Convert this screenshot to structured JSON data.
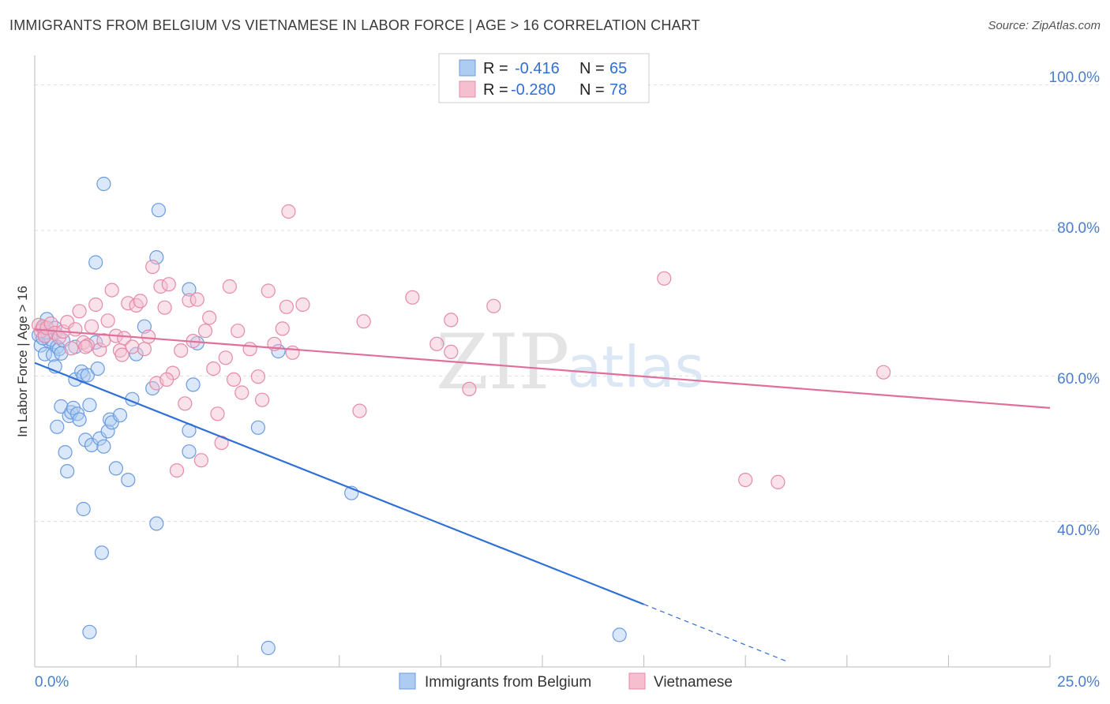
{
  "title": "IMMIGRANTS FROM BELGIUM VS VIETNAMESE IN LABOR FORCE | AGE > 16 CORRELATION CHART",
  "source": "Source: ZipAtlas.com",
  "watermark": {
    "zip": "ZIP",
    "atlas": "atlas"
  },
  "chart_data": {
    "type": "scatter",
    "title": "IMMIGRANTS FROM BELGIUM VS VIETNAMESE IN LABOR FORCE | AGE > 16 CORRELATION CHART",
    "xlabel": "",
    "ylabel": "In Labor Force | Age > 16",
    "xlim": [
      0,
      25
    ],
    "ylim": [
      20,
      103
    ],
    "x_tick_labels": [
      "0.0%",
      "25.0%"
    ],
    "y_ticks": [
      40,
      60,
      80,
      100
    ],
    "y_tick_labels": [
      "40.0%",
      "60.0%",
      "80.0%",
      "100.0%"
    ],
    "legend": {
      "entries": [
        {
          "r_label": "R =",
          "r_value": "-0.416",
          "n_label": "N =",
          "n_value": "65"
        },
        {
          "r_label": "R =",
          "r_value": "-0.280",
          "n_label": "N =",
          "n_value": "78"
        }
      ]
    },
    "series": [
      {
        "name": "Immigrants from Belgium",
        "color": "#6c9be0",
        "fill": "#aecbf2",
        "line_color": "#2f6fd6",
        "trend": {
          "x0": 0,
          "y0": 61.8,
          "x1": 15.0,
          "y1": 28.6,
          "dash_to_x": 18.5,
          "dash_to_y": 20.8
        },
        "points": [
          [
            0.1,
            65.6
          ],
          [
            0.15,
            64.2
          ],
          [
            0.2,
            66.6
          ],
          [
            0.25,
            63.0
          ],
          [
            0.3,
            67.8
          ],
          [
            0.35,
            64.8
          ],
          [
            0.4,
            65.0
          ],
          [
            0.45,
            62.9
          ],
          [
            0.5,
            61.3
          ],
          [
            0.55,
            64.0
          ],
          [
            0.6,
            63.7
          ],
          [
            0.65,
            63.1
          ],
          [
            0.7,
            64.9
          ],
          [
            0.3,
            66.0
          ],
          [
            0.2,
            65.2
          ],
          [
            0.5,
            66.6
          ],
          [
            0.55,
            53.0
          ],
          [
            0.65,
            55.8
          ],
          [
            0.75,
            49.5
          ],
          [
            0.8,
            46.9
          ],
          [
            0.85,
            54.5
          ],
          [
            0.9,
            55.0
          ],
          [
            0.95,
            55.6
          ],
          [
            1.0,
            59.5
          ],
          [
            1.05,
            54.8
          ],
          [
            1.1,
            54.0
          ],
          [
            1.15,
            60.6
          ],
          [
            1.2,
            60.0
          ],
          [
            1.25,
            51.2
          ],
          [
            1.3,
            60.1
          ],
          [
            1.35,
            56.0
          ],
          [
            1.4,
            50.5
          ],
          [
            1.55,
            61.0
          ],
          [
            1.6,
            51.4
          ],
          [
            1.7,
            50.3
          ],
          [
            1.8,
            52.4
          ],
          [
            1.85,
            54.0
          ],
          [
            1.9,
            53.6
          ],
          [
            2.0,
            47.3
          ],
          [
            2.1,
            54.6
          ],
          [
            1.5,
            64.6
          ],
          [
            1.0,
            64.0
          ],
          [
            2.5,
            63.0
          ],
          [
            2.3,
            45.7
          ],
          [
            3.0,
            39.7
          ],
          [
            2.9,
            58.3
          ],
          [
            3.8,
            49.6
          ],
          [
            3.8,
            52.5
          ],
          [
            3.9,
            58.8
          ],
          [
            4.0,
            64.5
          ],
          [
            5.5,
            52.9
          ],
          [
            6.0,
            63.4
          ],
          [
            7.8,
            43.9
          ],
          [
            3.05,
            82.8
          ],
          [
            1.7,
            86.4
          ],
          [
            1.5,
            75.6
          ],
          [
            3.0,
            76.3
          ],
          [
            3.8,
            71.9
          ],
          [
            2.7,
            66.8
          ],
          [
            1.2,
            41.7
          ],
          [
            1.65,
            35.7
          ],
          [
            1.35,
            24.8
          ],
          [
            5.75,
            22.6
          ],
          [
            14.4,
            24.4
          ],
          [
            2.4,
            56.8
          ]
        ]
      },
      {
        "name": "Vietnamese",
        "color": "#e58aa8",
        "fill": "#f5bfd0",
        "line_color": "#e0709a",
        "trend": {
          "x0": 0,
          "y0": 66.4,
          "x1": 25.0,
          "y1": 55.6
        },
        "points": [
          [
            0.1,
            67.0
          ],
          [
            0.15,
            66.2
          ],
          [
            0.2,
            66.8
          ],
          [
            0.25,
            65.5
          ],
          [
            0.3,
            66.6
          ],
          [
            0.4,
            67.2
          ],
          [
            0.5,
            65.9
          ],
          [
            0.6,
            65.3
          ],
          [
            0.7,
            66.1
          ],
          [
            0.8,
            67.4
          ],
          [
            0.9,
            63.8
          ],
          [
            1.0,
            66.4
          ],
          [
            1.1,
            68.9
          ],
          [
            1.2,
            64.6
          ],
          [
            1.3,
            64.2
          ],
          [
            1.4,
            66.8
          ],
          [
            1.5,
            69.8
          ],
          [
            1.6,
            63.6
          ],
          [
            1.7,
            64.9
          ],
          [
            1.8,
            67.6
          ],
          [
            1.9,
            71.8
          ],
          [
            2.0,
            65.5
          ],
          [
            2.1,
            63.5
          ],
          [
            2.2,
            65.2
          ],
          [
            2.3,
            70.0
          ],
          [
            2.4,
            64.0
          ],
          [
            2.5,
            69.7
          ],
          [
            2.6,
            70.3
          ],
          [
            2.7,
            63.7
          ],
          [
            2.8,
            65.4
          ],
          [
            2.9,
            75.0
          ],
          [
            3.0,
            59.0
          ],
          [
            3.1,
            72.3
          ],
          [
            3.2,
            69.4
          ],
          [
            3.3,
            72.6
          ],
          [
            3.4,
            60.4
          ],
          [
            3.5,
            47.0
          ],
          [
            3.6,
            63.5
          ],
          [
            3.7,
            56.2
          ],
          [
            3.8,
            70.4
          ],
          [
            3.9,
            64.8
          ],
          [
            4.0,
            70.5
          ],
          [
            4.1,
            48.4
          ],
          [
            4.2,
            66.2
          ],
          [
            4.3,
            68.0
          ],
          [
            4.4,
            61.0
          ],
          [
            4.5,
            54.8
          ],
          [
            4.6,
            50.8
          ],
          [
            4.7,
            62.5
          ],
          [
            4.8,
            72.3
          ],
          [
            4.9,
            59.5
          ],
          [
            5.0,
            66.2
          ],
          [
            5.1,
            57.7
          ],
          [
            5.3,
            63.7
          ],
          [
            5.5,
            59.9
          ],
          [
            5.6,
            56.7
          ],
          [
            5.75,
            71.7
          ],
          [
            5.9,
            64.4
          ],
          [
            6.1,
            66.5
          ],
          [
            6.2,
            69.5
          ],
          [
            6.35,
            63.2
          ],
          [
            6.6,
            69.8
          ],
          [
            6.25,
            82.6
          ],
          [
            8.1,
            67.5
          ],
          [
            8.0,
            55.2
          ],
          [
            9.3,
            70.8
          ],
          [
            9.9,
            64.4
          ],
          [
            10.25,
            63.3
          ],
          [
            10.25,
            67.7
          ],
          [
            10.7,
            58.2
          ],
          [
            11.3,
            69.6
          ],
          [
            15.5,
            73.4
          ],
          [
            20.9,
            60.5
          ],
          [
            17.5,
            45.7
          ],
          [
            18.3,
            45.4
          ],
          [
            1.25,
            64.0
          ],
          [
            3.25,
            59.5
          ],
          [
            2.15,
            62.9
          ]
        ]
      }
    ]
  },
  "bottom_legend": [
    {
      "label": "Immigrants from Belgium",
      "color": "#aecbf2",
      "border": "#6c9be0"
    },
    {
      "label": "Vietnamese",
      "color": "#f5bfd0",
      "border": "#e58aa8"
    }
  ]
}
